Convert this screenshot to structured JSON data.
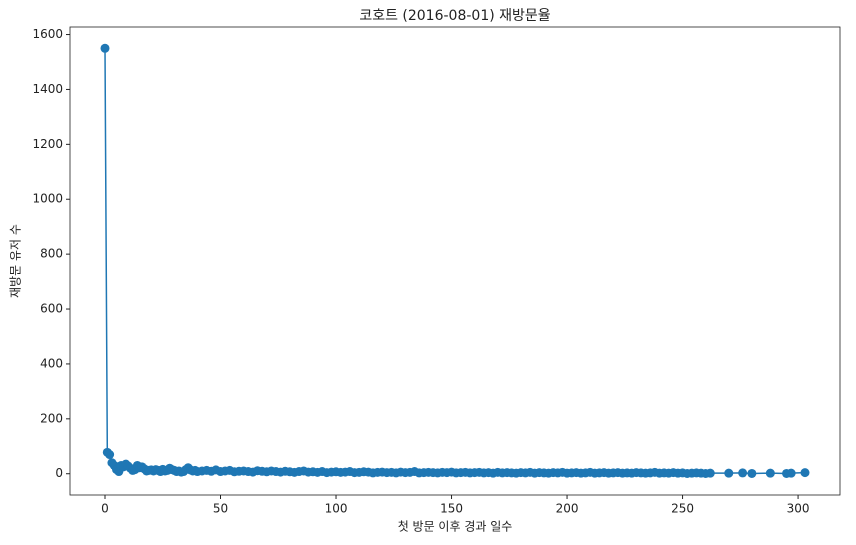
{
  "chart_data": {
    "type": "line",
    "title": "코호트 (2016-08-01) 재방문율",
    "x_label": "첫 방문 이후 경과 일수",
    "y_label": "재방문 유저 수",
    "x": [
      0,
      1,
      2,
      3,
      4,
      5,
      6,
      7,
      8,
      9,
      10,
      11,
      12,
      13,
      14,
      15,
      16,
      17,
      18,
      19,
      20,
      21,
      22,
      23,
      24,
      25,
      26,
      27,
      28,
      29,
      30,
      31,
      32,
      33,
      34,
      35,
      36,
      37,
      38,
      39,
      40,
      42,
      44,
      46,
      48,
      50,
      52,
      54,
      56,
      58,
      60,
      62,
      64,
      66,
      68,
      70,
      72,
      74,
      76,
      78,
      80,
      82,
      84,
      86,
      88,
      90,
      92,
      94,
      96,
      98,
      100,
      102,
      104,
      106,
      108,
      110,
      112,
      114,
      116,
      118,
      120,
      122,
      124,
      126,
      128,
      130,
      132,
      134,
      136,
      138,
      140,
      142,
      144,
      146,
      148,
      150,
      152,
      154,
      156,
      158,
      160,
      162,
      164,
      166,
      168,
      170,
      172,
      174,
      176,
      178,
      180,
      182,
      184,
      186,
      188,
      190,
      192,
      194,
      196,
      198,
      200,
      202,
      204,
      206,
      208,
      210,
      212,
      214,
      216,
      218,
      220,
      222,
      224,
      226,
      228,
      230,
      232,
      234,
      236,
      238,
      240,
      242,
      244,
      246,
      248,
      250,
      252,
      254,
      256,
      258,
      260,
      262,
      270,
      276,
      280,
      288,
      295,
      297,
      303
    ],
    "series": [
      {
        "name": "재방문 유저 수",
        "color": "#1f77b4",
        "values": [
          1550,
          78,
          70,
          40,
          30,
          15,
          8,
          30,
          25,
          35,
          28,
          20,
          12,
          15,
          30,
          22,
          25,
          18,
          10,
          12,
          14,
          10,
          15,
          12,
          8,
          16,
          10,
          12,
          20,
          15,
          12,
          8,
          10,
          6,
          8,
          15,
          22,
          14,
          10,
          12,
          8,
          10,
          12,
          9,
          14,
          8,
          10,
          12,
          7,
          9,
          10,
          8,
          6,
          11,
          9,
          7,
          10,
          8,
          6,
          9,
          7,
          5,
          8,
          10,
          6,
          7,
          5,
          8,
          4,
          6,
          7,
          5,
          6,
          8,
          4,
          5,
          7,
          6,
          3,
          5,
          6,
          4,
          5,
          3,
          6,
          4,
          5,
          8,
          3,
          4,
          5,
          4,
          3,
          5,
          4,
          6,
          3,
          4,
          5,
          3,
          4,
          5,
          3,
          4,
          2,
          5,
          3,
          4,
          3,
          2,
          4,
          3,
          5,
          2,
          4,
          3,
          2,
          4,
          3,
          5,
          2,
          3,
          4,
          2,
          3,
          5,
          2,
          3,
          4,
          2,
          3,
          4,
          2,
          3,
          2,
          4,
          3,
          2,
          3,
          5,
          2,
          3,
          2,
          4,
          2,
          3,
          1,
          2,
          3,
          2,
          1,
          2,
          2,
          3,
          1,
          2,
          1,
          2,
          4
        ]
      }
    ],
    "xlim": [
      -15.15,
      318.15
    ],
    "ylim": [
      -77.5,
      1627.5
    ],
    "xticks": [
      0,
      50,
      100,
      150,
      200,
      250,
      300
    ],
    "yticks": [
      0,
      200,
      400,
      600,
      800,
      1000,
      1200,
      1400,
      1600
    ]
  }
}
